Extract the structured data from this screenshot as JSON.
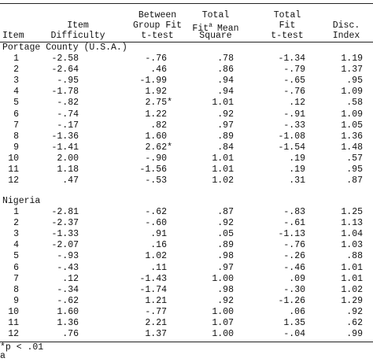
{
  "table": {
    "columns": [
      {
        "lines": [
          "Item"
        ]
      },
      {
        "lines": [
          "Item",
          "Difficulty"
        ]
      },
      {
        "lines": [
          "Between",
          "Group Fit",
          "t-test"
        ]
      },
      {
        "lines": [
          "Total",
          {
            "text": "Fit",
            "sup": "a",
            "after": "Mean"
          },
          "Square"
        ]
      },
      {
        "lines": [
          "Total",
          "Fit",
          "t-test"
        ]
      },
      {
        "lines": [
          "Disc.",
          "Index"
        ]
      }
    ],
    "sections": [
      {
        "label": "Portage County (U.S.A.)",
        "rows": [
          [
            "1",
            "-2.58",
            "-.76",
            ".78",
            "-1.34",
            "1.19"
          ],
          [
            "2",
            "-2.64",
            ".46",
            ".86",
            "-.79",
            "1.37"
          ],
          [
            "3",
            "-.95",
            "-1.99",
            ".94",
            "-.65",
            ".95"
          ],
          [
            "4",
            "-1.78",
            "1.92",
            ".94",
            "-.76",
            "1.09"
          ],
          [
            "5",
            "-.82",
            "2.75*",
            "1.01",
            ".12",
            ".58"
          ],
          [
            "6",
            "-.74",
            "1.22",
            ".92",
            "-.91",
            "1.09"
          ],
          [
            "7",
            "-.17",
            ".82",
            ".97",
            "-.33",
            "1.05"
          ],
          [
            "8",
            "-1.36",
            "1.60",
            ".89",
            "-1.08",
            "1.36"
          ],
          [
            "9",
            "-1.41",
            "2.62*",
            ".84",
            "-1.54",
            "1.48"
          ],
          [
            "10",
            "2.00",
            "-.90",
            "1.01",
            ".19",
            ".57"
          ],
          [
            "11",
            "1.18",
            "-1.56",
            "1.01",
            ".19",
            ".95"
          ],
          [
            "12",
            ".47",
            "-.53",
            "1.02",
            ".31",
            ".87"
          ]
        ]
      },
      {
        "label": "Nigeria",
        "rows": [
          [
            "1",
            "-2.81",
            "-.62",
            ".87",
            "-.83",
            "1.25"
          ],
          [
            "2",
            "-2.37",
            "-.60",
            ".92",
            "-.61",
            "1.13"
          ],
          [
            "3",
            "-1.33",
            ".91",
            ".05",
            "-1.13",
            "1.04"
          ],
          [
            "4",
            "-2.07",
            ".16",
            ".89",
            "-.76",
            "1.03"
          ],
          [
            "5",
            "-.93",
            "1.02",
            ".98",
            "-.26",
            ".88"
          ],
          [
            "6",
            "-.43",
            ".11",
            ".97",
            "-.46",
            "1.01"
          ],
          [
            "7",
            ".12",
            "-1.43",
            "1.00",
            ".09",
            "1.01"
          ],
          [
            "8",
            "-.34",
            "-1.74",
            ".98",
            "-.30",
            "1.02"
          ],
          [
            "9",
            "-.62",
            "1.21",
            ".92",
            "-1.26",
            "1.29"
          ],
          [
            "10",
            "1.60",
            "-.77",
            "1.00",
            ".06",
            ".92"
          ],
          [
            "11",
            "1.36",
            "2.21",
            "1.07",
            "1.35",
            ".62"
          ],
          [
            "12",
            ".76",
            "1.37",
            "1.00",
            "-.04",
            ".99"
          ]
        ]
      }
    ]
  },
  "footnotes": [
    "*p < .01",
    "a"
  ]
}
